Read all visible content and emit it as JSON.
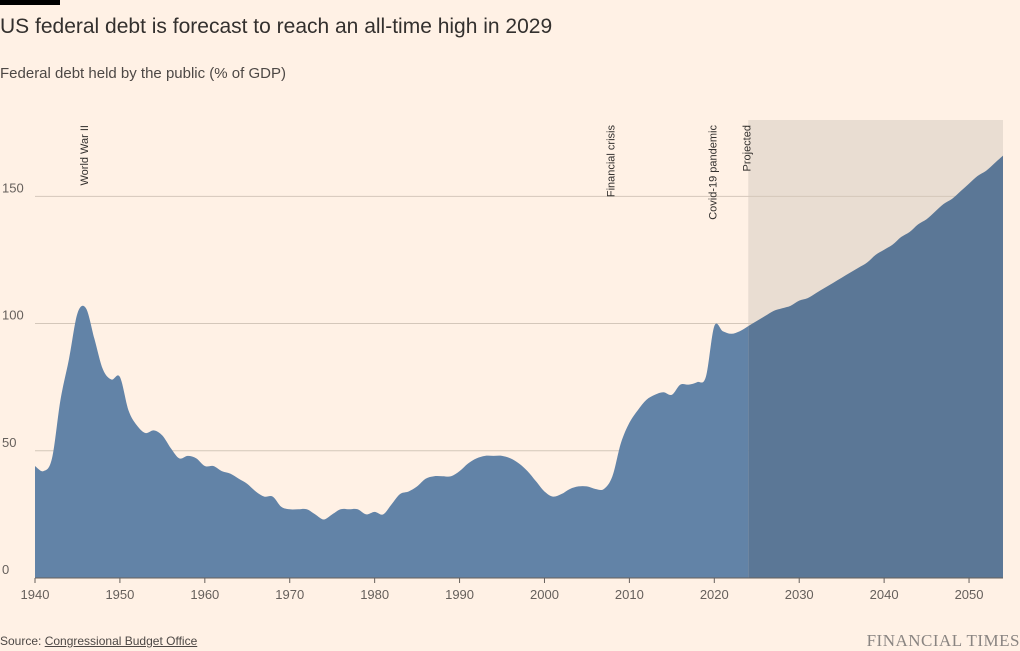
{
  "header": {
    "title": "US federal debt is forecast to reach an all-time high in 2029",
    "subtitle": "Federal debt held by the public (% of GDP)"
  },
  "footer": {
    "source_prefix": "Source: ",
    "source_name": "Congressional Budget Office",
    "brand": "FINANCIAL TIMES"
  },
  "colors": {
    "background": "#fff1e5",
    "area": "#6283a7",
    "projected_area": "#5b7796",
    "projected_band": "#e9ddd2",
    "gridline": "#d4c7ba"
  },
  "chart_data": {
    "type": "area",
    "title": "US federal debt is forecast to reach an all-time high in 2029",
    "subtitle": "Federal debt held by the public (% of GDP)",
    "xlabel": "",
    "ylabel": "",
    "xlim": [
      1940,
      2054
    ],
    "ylim": [
      0,
      180
    ],
    "x_ticks": [
      1940,
      1950,
      1960,
      1970,
      1980,
      1990,
      2000,
      2010,
      2020,
      2030,
      2040,
      2050
    ],
    "y_ticks": [
      0,
      50,
      100,
      150
    ],
    "grid": "horizontal",
    "projected_from": 2024,
    "annotations": [
      {
        "label": "World War II",
        "x": 1946
      },
      {
        "label": "Financial crisis",
        "x": 2008
      },
      {
        "label": "Covid-19 pandemic",
        "x": 2020
      },
      {
        "label": "Projected",
        "x": 2024
      }
    ],
    "series": [
      {
        "x": [
          1940,
          1941,
          1942,
          1943,
          1944,
          1945,
          1946,
          1947,
          1948,
          1949,
          1950,
          1951,
          1952,
          1953,
          1954,
          1955,
          1956,
          1957,
          1958,
          1959,
          1960,
          1961,
          1962,
          1963,
          1964,
          1965,
          1966,
          1967,
          1968,
          1969,
          1970,
          1971,
          1972,
          1973,
          1974,
          1975,
          1976,
          1977,
          1978,
          1979,
          1980,
          1981,
          1982,
          1983,
          1984,
          1985,
          1986,
          1987,
          1988,
          1989,
          1990,
          1991,
          1992,
          1993,
          1994,
          1995,
          1996,
          1997,
          1998,
          1999,
          2000,
          2001,
          2002,
          2003,
          2004,
          2005,
          2006,
          2007,
          2008,
          2009,
          2010,
          2011,
          2012,
          2013,
          2014,
          2015,
          2016,
          2017,
          2018,
          2019,
          2020,
          2021,
          2022,
          2023,
          2024,
          2025,
          2026,
          2027,
          2028,
          2029,
          2030,
          2031,
          2032,
          2033,
          2034,
          2035,
          2036,
          2037,
          2038,
          2039,
          2040,
          2041,
          2042,
          2043,
          2044,
          2045,
          2046,
          2047,
          2048,
          2049,
          2050,
          2051,
          2052,
          2053,
          2054
        ],
        "values": [
          44,
          42,
          47,
          70,
          86,
          104,
          106,
          94,
          82,
          78,
          79,
          66,
          60,
          57,
          58,
          56,
          51,
          47,
          48,
          47,
          44,
          44,
          42,
          41,
          39,
          37,
          34,
          32,
          32,
          28,
          27,
          27,
          27,
          25,
          23,
          25,
          27,
          27,
          27,
          25,
          26,
          25,
          29,
          33,
          34,
          36,
          39,
          40,
          40,
          40,
          42,
          45,
          47,
          48,
          48,
          48,
          47,
          45,
          42,
          38,
          34,
          32,
          33,
          35,
          36,
          36,
          35,
          35,
          40,
          53,
          61,
          66,
          70,
          72,
          73,
          72,
          76,
          76,
          77,
          79,
          99,
          97,
          96,
          97,
          99,
          101,
          103,
          105,
          106,
          107,
          109,
          110,
          112,
          114,
          116,
          118,
          120,
          122,
          124,
          127,
          129,
          131,
          134,
          136,
          139,
          141,
          144,
          147,
          149,
          152,
          155,
          158,
          160,
          163,
          166
        ]
      }
    ]
  }
}
